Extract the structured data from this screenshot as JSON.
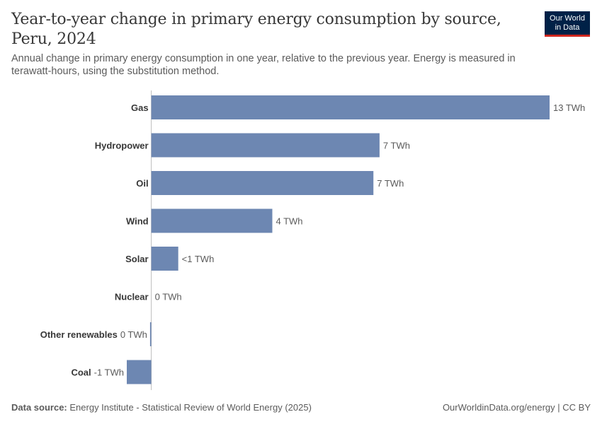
{
  "header": {
    "title": "Year-to-year change in primary energy consumption by source, Peru, 2024",
    "subtitle": "Annual change in primary energy consumption in one year, relative to the previous year. Energy is measured in terawatt-hours, using the substitution method."
  },
  "logo": {
    "line1": "Our World",
    "line2": "in Data"
  },
  "footer": {
    "source_label": "Data source:",
    "source_text": "Energy Institute - Statistical Review of World Energy (2025)",
    "right_text": "OurWorldinData.org/energy | CC BY"
  },
  "colors": {
    "bar": "#6d87b2",
    "axis": "#bdbdbd",
    "label": "#373737",
    "value": "#5b5b5b"
  },
  "chart_data": {
    "type": "bar",
    "orientation": "horizontal",
    "unit": "TWh",
    "categories": [
      "Gas",
      "Hydropower",
      "Oil",
      "Wind",
      "Solar",
      "Nuclear",
      "Other renewables",
      "Coal"
    ],
    "values": [
      13.0,
      7.45,
      7.25,
      3.95,
      0.88,
      0.0,
      -0.04,
      -0.8
    ],
    "value_labels": [
      "13 TWh",
      "7 TWh",
      "7 TWh",
      "4 TWh",
      "<1 TWh",
      "0 TWh",
      "0 TWh",
      "-1 TWh"
    ],
    "xlim": [
      -0.8,
      13.0
    ]
  }
}
